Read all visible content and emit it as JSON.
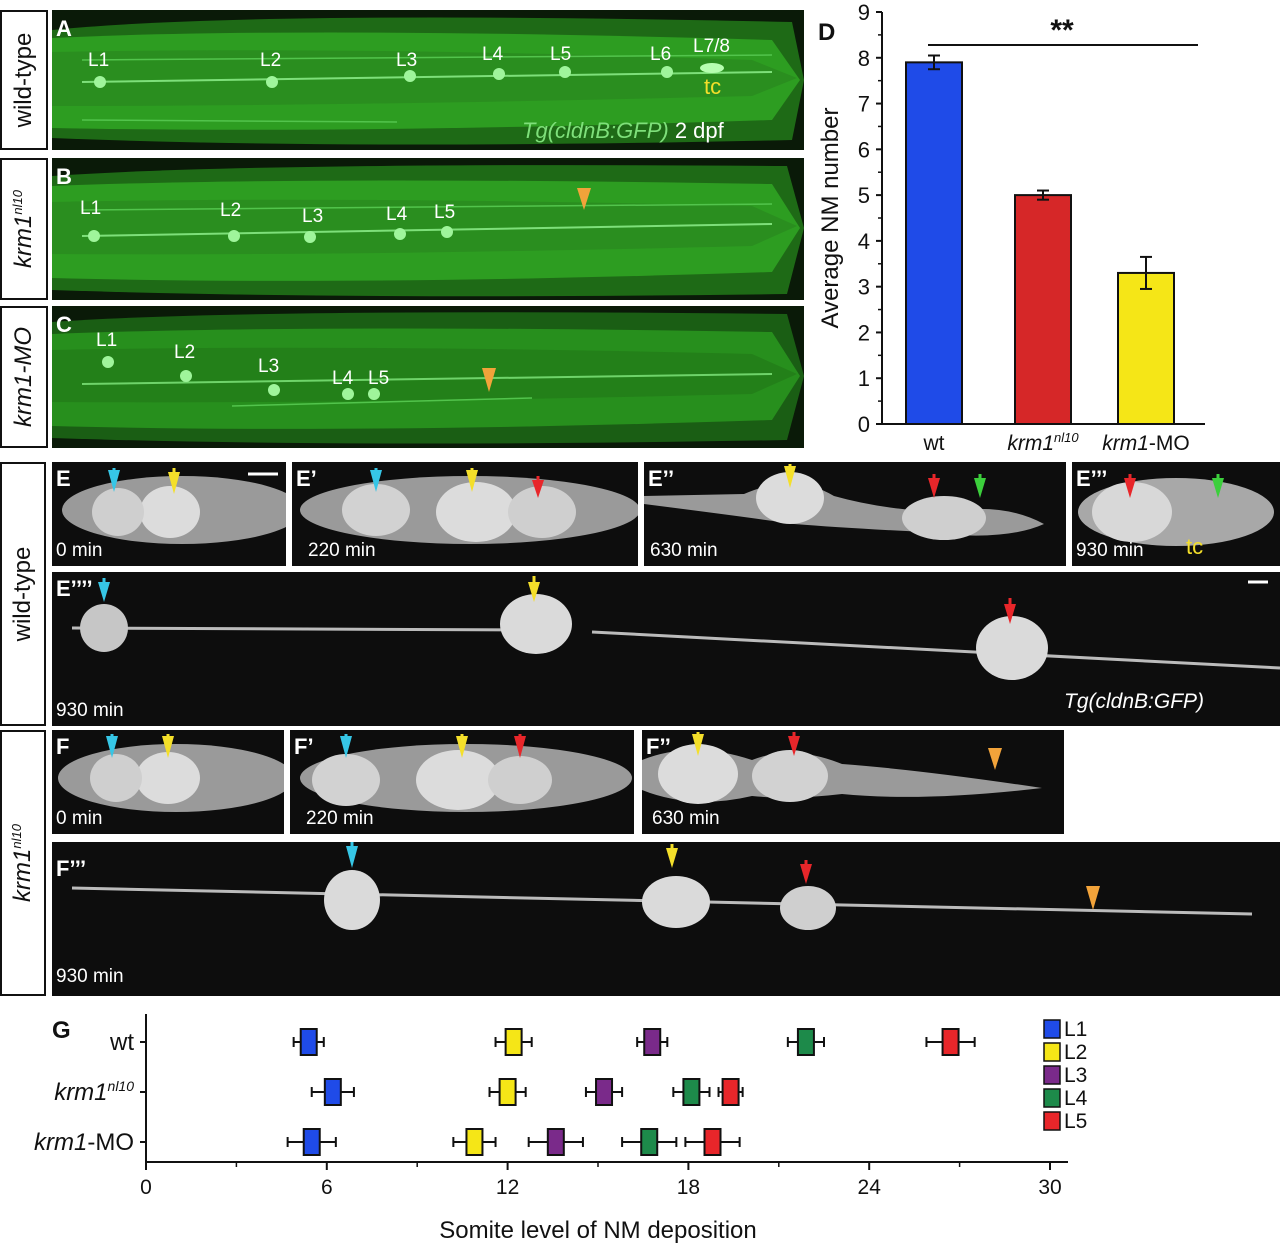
{
  "rows": {
    "wild_type_top": "wild-type",
    "krm1_mutant": "krm1",
    "krm1_mutant_sup": "nl10",
    "krm1_mo": "krm1-MO",
    "wild_type_mid": "wild-type",
    "krm1_mutant_mid": "krm1",
    "krm1_mutant_mid_sup": "nl10"
  },
  "panelA": {
    "letter": "A",
    "labels": [
      "L1",
      "L2",
      "L3",
      "L4",
      "L5",
      "L6",
      "L7/8"
    ],
    "tc": "tc",
    "transgene": "Tg(cldnB:GFP)",
    "stage": "2 dpf"
  },
  "panelB": {
    "letter": "B",
    "labels": [
      "L1",
      "L2",
      "L3",
      "L4",
      "L5"
    ]
  },
  "panelC": {
    "letter": "C",
    "labels": [
      "L1",
      "L2",
      "L3",
      "L4",
      "L5"
    ]
  },
  "panelE": [
    {
      "letter": "E",
      "time": "0 min"
    },
    {
      "letter": "E’",
      "time": "220 min"
    },
    {
      "letter": "E’’",
      "time": "630 min"
    },
    {
      "letter": "E’’’",
      "time": "930 min",
      "tc": "tc"
    },
    {
      "letter": "E’’’’",
      "time": "930 min",
      "transgene": "Tg(cldnB:GFP)"
    }
  ],
  "panelF": [
    {
      "letter": "F",
      "time": "0 min"
    },
    {
      "letter": "F’",
      "time": "220 min"
    },
    {
      "letter": "F’’",
      "time": "630 min"
    },
    {
      "letter": "F’’’",
      "time": "930 min"
    }
  ],
  "colors": {
    "cyan": "#36c6e6",
    "yellow": "#f4df2a",
    "red": "#e8262a",
    "green": "#3ccf3c",
    "orange": "#f2a33a",
    "blue": "#1f4be8",
    "barred": "#d62728",
    "baryellow": "#f5e617",
    "purple": "#7a2a8a",
    "dgreen": "#1d8a4a"
  },
  "chart_data": [
    {
      "panel": "D",
      "type": "bar",
      "categories": [
        "wt",
        "krm1nl10",
        "krm1-MO"
      ],
      "category_labels": [
        {
          "main": "wt",
          "sup": ""
        },
        {
          "main": "krm1",
          "sup": "nl10"
        },
        {
          "main": "krm1",
          "rest": "-MO"
        }
      ],
      "values": [
        7.9,
        5.0,
        3.3
      ],
      "errors": [
        0.15,
        0.1,
        0.35
      ],
      "bar_colors": [
        "#1f4be8",
        "#d62728",
        "#f5e617"
      ],
      "ylabel": "Average NM number",
      "ylim": [
        0,
        9
      ],
      "yticks": [
        "0",
        "1",
        "2",
        "3",
        "4",
        "5",
        "6",
        "7",
        "8",
        "9"
      ],
      "significance": "**"
    },
    {
      "panel": "G",
      "type": "box",
      "xlabel": "Somite level of NM deposition",
      "xlim": [
        0,
        30
      ],
      "xticks": [
        "0",
        "6",
        "12",
        "18",
        "24",
        "30"
      ],
      "rows": [
        {
          "label": "wt",
          "sup": ""
        },
        {
          "label": "krm1",
          "sup": "nl10"
        },
        {
          "label": "krm1",
          "rest": "-MO"
        }
      ],
      "legend": [
        "L1",
        "L2",
        "L3",
        "L4",
        "L5"
      ],
      "series": [
        {
          "name": "L1",
          "color": "#1f4be8",
          "values": [
            5.4,
            6.2,
            5.5
          ],
          "errors": [
            0.5,
            0.7,
            0.8
          ]
        },
        {
          "name": "L2",
          "color": "#f5e617",
          "values": [
            12.2,
            12.0,
            10.9
          ],
          "errors": [
            0.6,
            0.6,
            0.7
          ]
        },
        {
          "name": "L3",
          "color": "#7a2a8a",
          "values": [
            16.8,
            15.2,
            13.6
          ],
          "errors": [
            0.5,
            0.6,
            0.9
          ]
        },
        {
          "name": "L4",
          "color": "#1d8a4a",
          "values": [
            21.9,
            18.1,
            16.7
          ],
          "errors": [
            0.6,
            0.6,
            0.9
          ]
        },
        {
          "name": "L5",
          "color": "#e8262a",
          "values": [
            26.7,
            19.4,
            18.8
          ],
          "errors": [
            0.8,
            0.4,
            0.9
          ]
        }
      ]
    }
  ]
}
